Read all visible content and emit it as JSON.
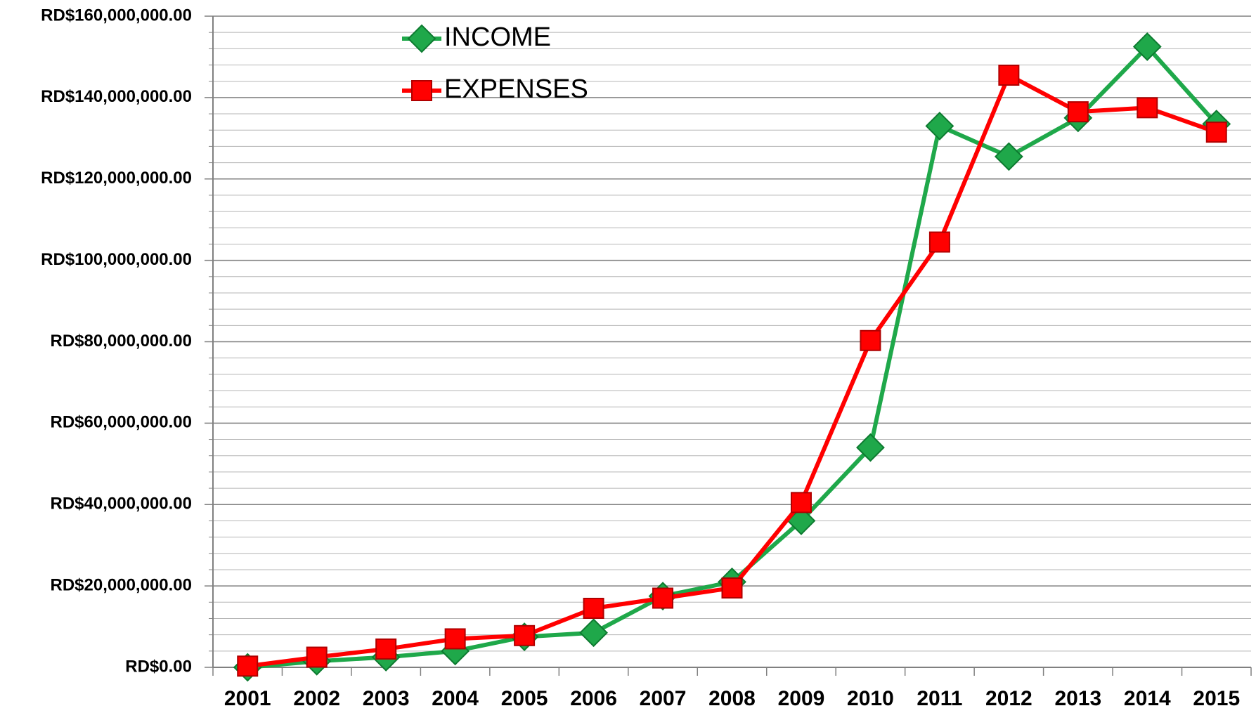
{
  "chart_data": {
    "type": "line",
    "categories": [
      "2001",
      "2002",
      "2003",
      "2004",
      "2005",
      "2006",
      "2007",
      "2008",
      "2009",
      "2010",
      "2011",
      "2012",
      "2013",
      "2014",
      "2015"
    ],
    "series": [
      {
        "name": "INCOME",
        "color": "#1fa84a",
        "marker": "diamond",
        "values": [
          0,
          1500000,
          2500000,
          4000000,
          7500000,
          8500000,
          17500000,
          21000000,
          36000000,
          54000000,
          133000000,
          125500000,
          135000000,
          152500000,
          133500000
        ]
      },
      {
        "name": "EXPENSES",
        "color": "#ff0000",
        "marker": "square",
        "values": [
          300000,
          2500000,
          4500000,
          7000000,
          7800000,
          14500000,
          17000000,
          19500000,
          40500000,
          80300000,
          104500000,
          145500000,
          136500000,
          137500000,
          131500000
        ]
      }
    ],
    "ylim": [
      0,
      160000000
    ],
    "yticks": [
      {
        "value": 0,
        "label": "RD$0.00"
      },
      {
        "value": 20000000,
        "label": "RD$20,000,000.00"
      },
      {
        "value": 40000000,
        "label": "RD$40,000,000.00"
      },
      {
        "value": 60000000,
        "label": "RD$60,000,000.00"
      },
      {
        "value": 80000000,
        "label": "RD$80,000,000.00"
      },
      {
        "value": 100000000,
        "label": "RD$100,000,000.00"
      },
      {
        "value": 120000000,
        "label": "RD$120,000,000.00"
      },
      {
        "value": 140000000,
        "label": "RD$140,000,000.00"
      },
      {
        "value": 160000000,
        "label": "RD$160,000,000.00"
      }
    ],
    "minor_yticks": [
      4000000,
      8000000,
      12000000,
      16000000,
      24000000,
      28000000,
      32000000,
      36000000,
      44000000,
      48000000,
      52000000,
      56000000,
      64000000,
      68000000,
      72000000,
      76000000,
      84000000,
      88000000,
      92000000,
      96000000,
      104000000,
      108000000,
      112000000,
      116000000,
      124000000,
      128000000,
      132000000,
      136000000,
      144000000,
      148000000,
      152000000,
      156000000
    ],
    "grid": true,
    "legend": "top-left"
  }
}
